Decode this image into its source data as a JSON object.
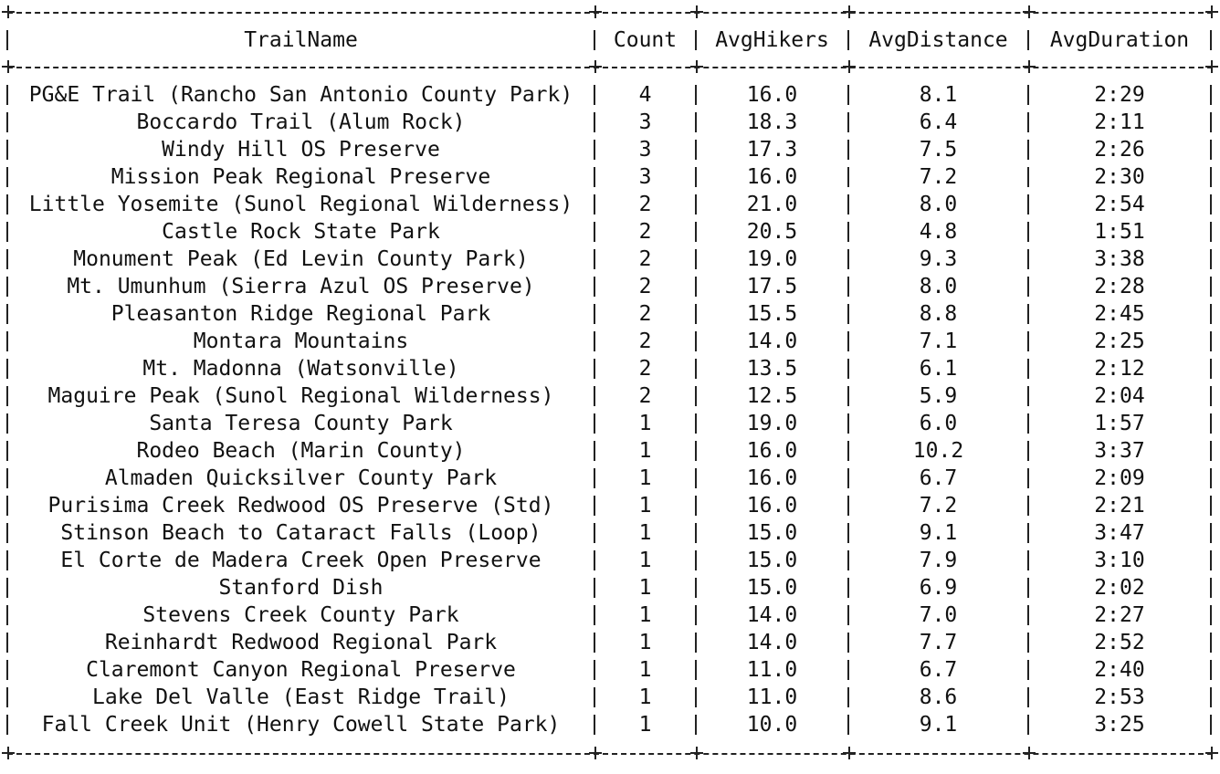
{
  "table": {
    "columns": [
      "TrailName",
      "Count",
      "AvgHikers",
      "AvgDistance",
      "AvgDuration"
    ],
    "rows": [
      [
        "PG&E Trail (Rancho San Antonio County Park)",
        "4",
        "16.0",
        "8.1",
        "2:29"
      ],
      [
        "Boccardo Trail (Alum Rock)",
        "3",
        "18.3",
        "6.4",
        "2:11"
      ],
      [
        "Windy Hill OS Preserve",
        "3",
        "17.3",
        "7.5",
        "2:26"
      ],
      [
        "Mission Peak Regional Preserve",
        "3",
        "16.0",
        "7.2",
        "2:30"
      ],
      [
        "Little Yosemite (Sunol Regional Wilderness)",
        "2",
        "21.0",
        "8.0",
        "2:54"
      ],
      [
        "Castle Rock State Park",
        "2",
        "20.5",
        "4.8",
        "1:51"
      ],
      [
        "Monument Peak (Ed Levin County Park)",
        "2",
        "19.0",
        "9.3",
        "3:38"
      ],
      [
        "Mt. Umunhum (Sierra Azul OS Preserve)",
        "2",
        "17.5",
        "8.0",
        "2:28"
      ],
      [
        "Pleasanton Ridge Regional Park",
        "2",
        "15.5",
        "8.8",
        "2:45"
      ],
      [
        "Montara Mountains",
        "2",
        "14.0",
        "7.1",
        "2:25"
      ],
      [
        "Mt. Madonna (Watsonville)",
        "2",
        "13.5",
        "6.1",
        "2:12"
      ],
      [
        "Maguire Peak (Sunol Regional Wilderness)",
        "2",
        "12.5",
        "5.9",
        "2:04"
      ],
      [
        "Santa Teresa County Park",
        "1",
        "19.0",
        "6.0",
        "1:57"
      ],
      [
        "Rodeo Beach (Marin County)",
        "1",
        "16.0",
        "10.2",
        "3:37"
      ],
      [
        "Almaden Quicksilver County Park",
        "1",
        "16.0",
        "6.7",
        "2:09"
      ],
      [
        "Purisima Creek Redwood OS Preserve (Std)",
        "1",
        "16.0",
        "7.2",
        "2:21"
      ],
      [
        "Stinson Beach to Cataract Falls (Loop)",
        "1",
        "15.0",
        "9.1",
        "3:47"
      ],
      [
        "El Corte de Madera Creek Open Preserve",
        "1",
        "15.0",
        "7.9",
        "3:10"
      ],
      [
        "Stanford Dish",
        "1",
        "15.0",
        "6.9",
        "2:02"
      ],
      [
        "Stevens Creek County Park",
        "1",
        "14.0",
        "7.0",
        "2:27"
      ],
      [
        "Reinhardt Redwood Regional Park",
        "1",
        "14.0",
        "7.7",
        "2:52"
      ],
      [
        "Claremont Canyon Regional Preserve",
        "1",
        "11.0",
        "6.7",
        "2:40"
      ],
      [
        "Lake Del Valle (East Ridge Trail)",
        "1",
        "11.0",
        "8.6",
        "2:53"
      ],
      [
        "Fall Creek Unit (Henry Cowell State Park)",
        "1",
        "10.0",
        "9.1",
        "3:25"
      ]
    ]
  }
}
